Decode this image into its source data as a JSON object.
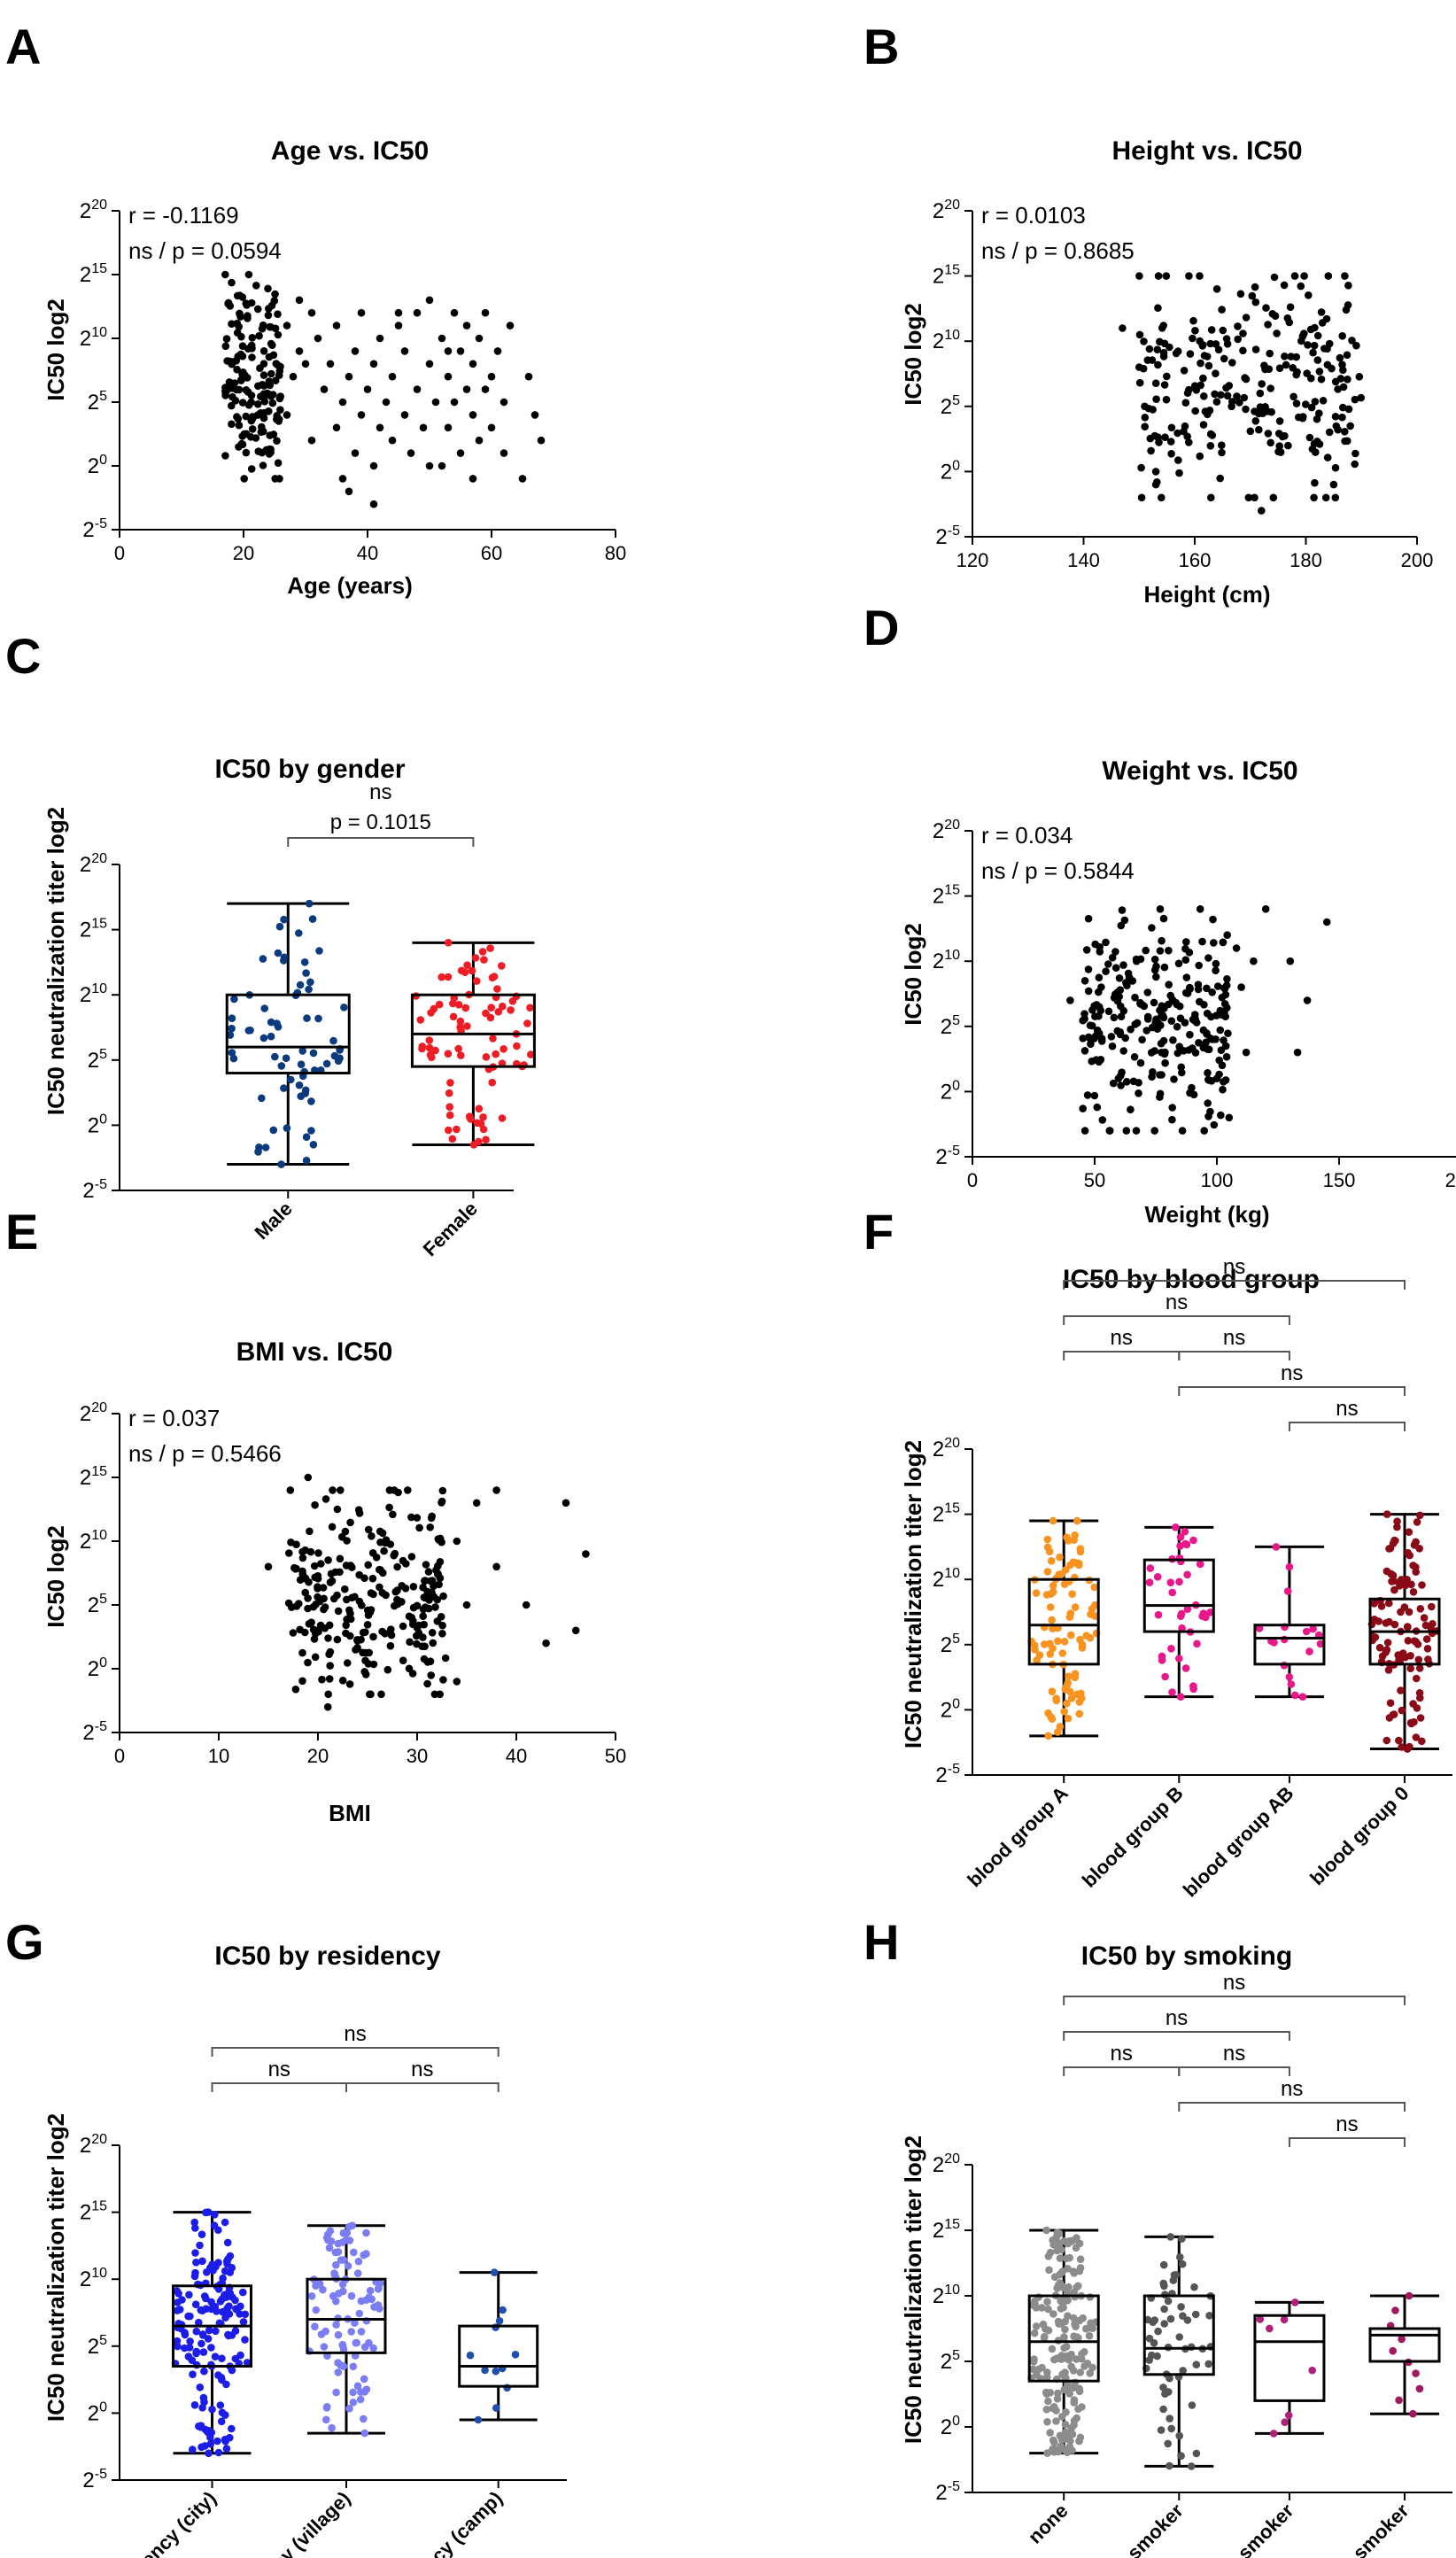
{
  "chart_data": [
    {
      "panel": "A",
      "type": "scatter",
      "title": "Age vs. IC50",
      "xlabel": "Age (years)",
      "ylabel": "IC50 log2",
      "xlim": [
        0,
        80
      ],
      "xticks": [
        "0",
        "20",
        "40",
        "60",
        "80"
      ],
      "ylim": [
        -5,
        20
      ],
      "ytick_exps": [
        "20",
        "15",
        "10",
        "5",
        "0",
        "-5"
      ],
      "ytick_base": "2",
      "stat_r": "r = -0.1169",
      "stat_p": "ns / p = 0.0594",
      "cluster": [
        {
          "x": [
            17,
            26
          ],
          "y": [
            -1,
            15
          ],
          "n": 160
        }
      ],
      "points": [
        [
          27,
          11
        ],
        [
          29,
          13
        ],
        [
          31,
          12
        ],
        [
          27,
          4
        ],
        [
          28,
          7
        ],
        [
          29,
          9
        ],
        [
          30,
          8
        ],
        [
          31,
          2
        ],
        [
          32,
          10
        ],
        [
          33,
          6
        ],
        [
          34,
          8
        ],
        [
          35,
          3
        ],
        [
          35,
          11
        ],
        [
          36,
          5
        ],
        [
          37,
          -2
        ],
        [
          37,
          7
        ],
        [
          38,
          1
        ],
        [
          38,
          9
        ],
        [
          39,
          4
        ],
        [
          39,
          12
        ],
        [
          40,
          6
        ],
        [
          41,
          0
        ],
        [
          41,
          8
        ],
        [
          42,
          3
        ],
        [
          42,
          10
        ],
        [
          43,
          5
        ],
        [
          44,
          2
        ],
        [
          44,
          7
        ],
        [
          45,
          11
        ],
        [
          46,
          4
        ],
        [
          46,
          9
        ],
        [
          47,
          1
        ],
        [
          48,
          6
        ],
        [
          48,
          12
        ],
        [
          49,
          3
        ],
        [
          50,
          8
        ],
        [
          50,
          13
        ],
        [
          51,
          5
        ],
        [
          52,
          10
        ],
        [
          52,
          0
        ],
        [
          53,
          7
        ],
        [
          53,
          3
        ],
        [
          54,
          12
        ],
        [
          54,
          5
        ],
        [
          55,
          9
        ],
        [
          55,
          1
        ],
        [
          56,
          6
        ],
        [
          56,
          11
        ],
        [
          57,
          4
        ],
        [
          57,
          8
        ],
        [
          58,
          2
        ],
        [
          58,
          10
        ],
        [
          59,
          6
        ],
        [
          59,
          12
        ],
        [
          60,
          3
        ],
        [
          60,
          7
        ],
        [
          61,
          9
        ],
        [
          62,
          1
        ],
        [
          63,
          11
        ],
        [
          65,
          -1
        ],
        [
          66,
          7
        ],
        [
          67,
          4
        ],
        [
          68,
          2
        ],
        [
          41,
          -3
        ],
        [
          36,
          -1
        ],
        [
          45,
          12
        ],
        [
          50,
          0
        ],
        [
          53,
          9
        ],
        [
          57,
          -1
        ],
        [
          62,
          5
        ]
      ]
    },
    {
      "panel": "B",
      "type": "scatter",
      "title": "Height vs. IC50",
      "xlabel": "Height (cm)",
      "ylabel": "IC50 log2",
      "xlim": [
        120,
        200
      ],
      "xticks": [
        "120",
        "140",
        "160",
        "180",
        "200"
      ],
      "ylim": [
        -5,
        20
      ],
      "ytick_exps": [
        "20",
        "15",
        "10",
        "5",
        "0",
        "-5"
      ],
      "ytick_base": "2",
      "stat_r": "r = 0.0103",
      "stat_p": "ns / p = 0.8685",
      "cluster": [
        {
          "x": [
            150,
            190
          ],
          "y": [
            -2,
            15
          ],
          "n": 250
        }
      ],
      "points": [
        [
          147,
          11
        ],
        [
          150,
          8
        ],
        [
          151,
          5
        ],
        [
          153,
          -1
        ],
        [
          154,
          -2
        ],
        [
          185,
          -1
        ],
        [
          178,
          15
        ],
        [
          164,
          14
        ],
        [
          172,
          -3
        ]
      ]
    },
    {
      "panel": "C",
      "type": "box",
      "title": "IC50 by gender",
      "ylabel": "IC50 neutralization titer log2",
      "ylim": [
        -5,
        20
      ],
      "ytick_exps": [
        "20",
        "15",
        "10",
        "5",
        "0",
        "-5"
      ],
      "ytick_base": "2",
      "categories": [
        "Male",
        "Female"
      ],
      "groups": [
        {
          "name": "Male",
          "min": -3,
          "q1": 4,
          "median": 6,
          "q3": 10,
          "max": 17,
          "n": 70,
          "color": "#0b3b7e"
        },
        {
          "name": "Female",
          "min": -1.5,
          "q1": 4.5,
          "median": 7,
          "q3": 10,
          "max": 14,
          "n": 85,
          "color": "#ee1c25"
        }
      ],
      "comparisons": [
        {
          "a": 0,
          "b": 1,
          "label": "ns",
          "p": "p = 0.1015"
        }
      ]
    },
    {
      "panel": "D",
      "type": "scatter",
      "title": "Weight vs. IC50",
      "xlabel": "Weight (kg)",
      "ylabel": "IC50 log2",
      "xlim": [
        0,
        200
      ],
      "xticks": [
        "0",
        "50",
        "100",
        "150",
        "200"
      ],
      "ylim": [
        -5,
        20
      ],
      "ytick_exps": [
        "20",
        "15",
        "10",
        "5",
        "0",
        "-5"
      ],
      "ytick_base": "2",
      "stat_r": "r = 0.034",
      "stat_p": "ns / p = 0.5844",
      "cluster": [
        {
          "x": [
            45,
            105
          ],
          "y": [
            -3,
            14
          ],
          "n": 260
        }
      ],
      "points": [
        [
          40,
          7
        ],
        [
          110,
          8
        ],
        [
          112,
          3
        ],
        [
          115,
          10
        ],
        [
          120,
          14
        ],
        [
          130,
          10
        ],
        [
          133,
          3
        ],
        [
          137,
          7
        ],
        [
          145,
          13
        ],
        [
          105,
          -2
        ],
        [
          100,
          1
        ],
        [
          108,
          11
        ]
      ]
    },
    {
      "panel": "E",
      "type": "scatter",
      "title": "BMI vs. IC50",
      "xlabel": "BMI",
      "ylabel": "IC50 log2",
      "xlim": [
        0,
        50
      ],
      "xticks": [
        "0",
        "10",
        "20",
        "30",
        "40",
        "50"
      ],
      "ylim": [
        -5,
        20
      ],
      "ytick_exps": [
        "20",
        "15",
        "10",
        "5",
        "0",
        "-5"
      ],
      "ytick_base": "2",
      "stat_r": "r = 0.037",
      "stat_p": "ns / p = 0.5466",
      "cluster": [
        {
          "x": [
            17,
            33
          ],
          "y": [
            -2,
            14
          ],
          "n": 260
        }
      ],
      "points": [
        [
          15,
          8
        ],
        [
          19,
          15
        ],
        [
          21,
          -3
        ],
        [
          34,
          10
        ],
        [
          35,
          5
        ],
        [
          36,
          13
        ],
        [
          38,
          14
        ],
        [
          38,
          8
        ],
        [
          41,
          5
        ],
        [
          43,
          2
        ],
        [
          45,
          13
        ],
        [
          46,
          3
        ],
        [
          47,
          9
        ],
        [
          34,
          -1
        ]
      ]
    },
    {
      "panel": "F",
      "type": "box",
      "title": "IC50 by blood group",
      "ylabel": "IC50 neutralization titer log2",
      "ylim": [
        -5,
        20
      ],
      "ytick_exps": [
        "20",
        "15",
        "10",
        "5",
        "0",
        "-5"
      ],
      "ytick_base": "2",
      "categories": [
        "blood group A",
        "blood group B",
        "blood group AB",
        "blood group 0"
      ],
      "groups": [
        {
          "name": "blood group A",
          "min": -2,
          "q1": 3.5,
          "median": 6.5,
          "q3": 10,
          "max": 14.5,
          "n": 95,
          "color": "#f7931e"
        },
        {
          "name": "blood group B",
          "min": 1,
          "q1": 6,
          "median": 8,
          "q3": 11.5,
          "max": 14,
          "n": 40,
          "color": "#e8178a"
        },
        {
          "name": "blood group AB",
          "min": 1,
          "q1": 3.5,
          "median": 5.5,
          "q3": 6.5,
          "max": 12.5,
          "n": 18,
          "color": "#e8178a"
        },
        {
          "name": "blood group 0",
          "min": -3,
          "q1": 3.5,
          "median": 6,
          "q3": 8.5,
          "max": 15,
          "n": 110,
          "color": "#8b0a18"
        }
      ],
      "comparisons": [
        {
          "a": 0,
          "b": 3,
          "label": "ns",
          "level": 4
        },
        {
          "a": 0,
          "b": 2,
          "label": "ns",
          "level": 3
        },
        {
          "a": 0,
          "b": 1,
          "label": "ns",
          "level": 2
        },
        {
          "a": 1,
          "b": 2,
          "label": "ns",
          "level": 2
        },
        {
          "a": 1,
          "b": 3,
          "label": "ns",
          "level": 1
        },
        {
          "a": 2,
          "b": 3,
          "label": "ns",
          "level": 0
        }
      ]
    },
    {
      "panel": "G",
      "type": "box",
      "title": "IC50 by residency",
      "ylabel": "IC50 neutralization titer log2",
      "ylim": [
        -5,
        20
      ],
      "ytick_exps": [
        "20",
        "15",
        "10",
        "5",
        "0",
        "-5"
      ],
      "ytick_base": "2",
      "categories": [
        "residency (city)",
        "residency (village)",
        "residency (camp)"
      ],
      "groups": [
        {
          "name": "residency (city)",
          "min": -3,
          "q1": 3.5,
          "median": 6.5,
          "q3": 9.5,
          "max": 15,
          "n": 160,
          "color": "#1d1de8"
        },
        {
          "name": "residency (village)",
          "min": -1.5,
          "q1": 4.5,
          "median": 7,
          "q3": 10,
          "max": 14,
          "n": 100,
          "color": "#7a7ef2"
        },
        {
          "name": "residency (camp)",
          "min": -0.5,
          "q1": 2,
          "median": 3.5,
          "q3": 6.5,
          "max": 10.5,
          "n": 12,
          "color": "#1f4fa8"
        }
      ],
      "comparisons": [
        {
          "a": 0,
          "b": 2,
          "label": "ns",
          "level": 2
        },
        {
          "a": 0,
          "b": 1,
          "label": "ns",
          "level": 1
        },
        {
          "a": 1,
          "b": 2,
          "label": "ns",
          "level": 1
        }
      ]
    },
    {
      "panel": "H",
      "type": "box",
      "title": "IC50 by smoking",
      "ylabel": "IC50 neutralization titer log2",
      "ylim": [
        -5,
        20
      ],
      "ytick_exps": [
        "20",
        "15",
        "10",
        "5",
        "0",
        "-5"
      ],
      "ytick_base": "2",
      "categories": [
        "none",
        "ctive smoker",
        "previous smoker",
        "passive smoker"
      ],
      "groups": [
        {
          "name": "none",
          "min": -2,
          "q1": 3.5,
          "median": 6.5,
          "q3": 10,
          "max": 15,
          "n": 190,
          "color": "#8c8c8c"
        },
        {
          "name": "ctive smoker",
          "min": -3,
          "q1": 4,
          "median": 6,
          "q3": 10,
          "max": 14.5,
          "n": 60,
          "color": "#555555"
        },
        {
          "name": "previous smoker",
          "min": -0.5,
          "q1": 2,
          "median": 6.5,
          "q3": 8.5,
          "max": 9.5,
          "n": 8,
          "color": "#b01f7a"
        },
        {
          "name": "passive smoker",
          "min": 1,
          "q1": 5,
          "median": 7,
          "q3": 7.5,
          "max": 10,
          "n": 10,
          "color": "#a0195f"
        }
      ],
      "comparisons": [
        {
          "a": 0,
          "b": 3,
          "label": "ns",
          "level": 4
        },
        {
          "a": 0,
          "b": 2,
          "label": "ns",
          "level": 3
        },
        {
          "a": 0,
          "b": 1,
          "label": "ns",
          "level": 2
        },
        {
          "a": 1,
          "b": 2,
          "label": "ns",
          "level": 2
        },
        {
          "a": 1,
          "b": 3,
          "label": "ns",
          "level": 1
        },
        {
          "a": 2,
          "b": 3,
          "label": "ns",
          "level": 0
        }
      ]
    }
  ]
}
